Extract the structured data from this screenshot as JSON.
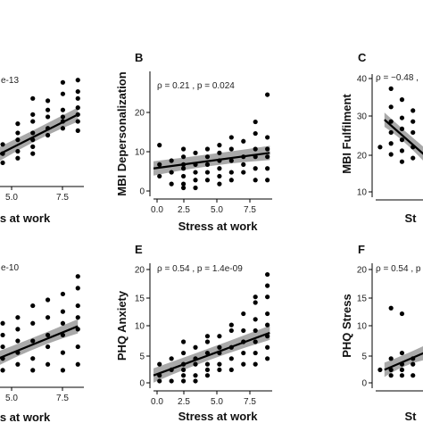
{
  "colors": {
    "point": "#000000",
    "band": "#9a9a9a",
    "line": "#000000",
    "axis": "#000000"
  },
  "chart_data": [
    {
      "id": "A",
      "panel_label": "",
      "type": "scatter",
      "annotation": "e-13",
      "xlabel": "s at work",
      "ylabel": "",
      "xticks": [
        "5.0",
        "7.5"
      ],
      "yticks": [],
      "xlim": [
        3.7,
        9.4
      ],
      "ylim": [
        15,
        62
      ],
      "fit": {
        "x0": 3.7,
        "y0": 26.5,
        "x1": 9,
        "y1": 44
      },
      "points": [
        [
          4,
          23
        ],
        [
          4,
          27
        ],
        [
          4,
          31
        ],
        [
          5,
          25
        ],
        [
          5,
          28
        ],
        [
          5,
          33
        ],
        [
          5,
          36
        ],
        [
          5,
          40
        ],
        [
          6,
          27
        ],
        [
          6,
          30
        ],
        [
          6,
          33
        ],
        [
          6,
          36
        ],
        [
          6,
          41
        ],
        [
          6,
          44
        ],
        [
          6,
          51
        ],
        [
          7,
          35
        ],
        [
          7,
          38
        ],
        [
          7,
          43
        ],
        [
          7,
          46
        ],
        [
          7,
          50
        ],
        [
          8,
          38
        ],
        [
          8,
          41
        ],
        [
          8,
          43
        ],
        [
          8,
          46
        ],
        [
          8,
          53
        ],
        [
          8,
          58
        ],
        [
          9,
          37
        ],
        [
          9,
          41
        ],
        [
          9,
          44
        ],
        [
          9,
          47
        ],
        [
          9,
          51
        ],
        [
          9,
          54
        ],
        [
          9,
          59
        ]
      ]
    },
    {
      "id": "B",
      "panel_label": "B",
      "type": "scatter",
      "annotation": "ρ = 0.21 , p = 0.024",
      "xlabel": "Stress at work",
      "ylabel": "MBI Depersonalization",
      "xticks": [
        "0.0",
        "2.5",
        "5.0",
        "7.5"
      ],
      "yticks": [
        "0",
        "10",
        "20"
      ],
      "xlim": [
        -0.5,
        9.4
      ],
      "ylim": [
        -1.5,
        30
      ],
      "fit": {
        "x0": -0.5,
        "y0": 5,
        "x1": 9.2,
        "y1": 9
      },
      "points": [
        [
          0,
          3
        ],
        [
          0,
          6
        ],
        [
          0,
          11
        ],
        [
          1,
          1
        ],
        [
          1,
          4
        ],
        [
          1,
          7
        ],
        [
          2,
          0
        ],
        [
          2,
          1
        ],
        [
          2,
          3
        ],
        [
          2,
          5
        ],
        [
          2,
          6
        ],
        [
          2,
          8
        ],
        [
          2,
          10
        ],
        [
          3,
          0
        ],
        [
          3,
          2
        ],
        [
          3,
          4
        ],
        [
          3,
          6
        ],
        [
          3,
          9
        ],
        [
          4,
          2
        ],
        [
          4,
          4
        ],
        [
          4,
          6
        ],
        [
          4,
          8
        ],
        [
          4,
          10
        ],
        [
          5,
          1
        ],
        [
          5,
          3
        ],
        [
          5,
          5
        ],
        [
          5,
          7
        ],
        [
          5,
          9
        ],
        [
          5,
          11
        ],
        [
          6,
          2
        ],
        [
          6,
          4
        ],
        [
          6,
          7
        ],
        [
          6,
          10
        ],
        [
          6,
          13
        ],
        [
          7,
          4
        ],
        [
          7,
          6
        ],
        [
          7,
          8
        ],
        [
          7,
          12
        ],
        [
          8,
          2
        ],
        [
          8,
          5
        ],
        [
          8,
          8
        ],
        [
          8,
          10
        ],
        [
          8,
          14
        ],
        [
          8,
          17
        ],
        [
          9,
          2
        ],
        [
          9,
          5
        ],
        [
          9,
          8
        ],
        [
          9,
          10
        ],
        [
          9,
          13
        ],
        [
          9,
          24
        ]
      ]
    },
    {
      "id": "C",
      "panel_label": "C",
      "type": "scatter",
      "annotation": "ρ = −0.48 ,",
      "xlabel": "St",
      "ylabel": "MBI Fulfilment",
      "xticks": [],
      "yticks": [
        "10",
        "20",
        "30",
        "40"
      ],
      "xlim": [
        -0.4,
        4.0
      ],
      "ylim": [
        9,
        42
      ],
      "fit": {
        "x0": 0.4,
        "y0": 29.5,
        "x1": 4,
        "y1": 20
      },
      "points": [
        [
          0,
          22
        ],
        [
          1,
          20
        ],
        [
          1,
          23
        ],
        [
          1,
          26
        ],
        [
          1,
          29
        ],
        [
          1,
          33
        ],
        [
          1,
          38
        ],
        [
          2,
          18
        ],
        [
          2,
          21
        ],
        [
          2,
          24
        ],
        [
          2,
          27
        ],
        [
          2,
          30
        ],
        [
          2,
          35
        ],
        [
          3,
          19
        ],
        [
          3,
          22
        ],
        [
          3,
          26
        ],
        [
          3,
          29
        ],
        [
          3,
          32
        ]
      ]
    },
    {
      "id": "D",
      "panel_label": "",
      "type": "scatter",
      "annotation": "e-10",
      "xlabel": "s at work",
      "ylabel": "",
      "xticks": [
        "5.0",
        "7.5"
      ],
      "yticks": [],
      "xlim": [
        3.7,
        9.4
      ],
      "ylim": [
        -1,
        20
      ],
      "fit": {
        "x0": 3.7,
        "y0": 3,
        "x1": 9,
        "y1": 8.5
      },
      "points": [
        [
          4,
          1
        ],
        [
          4,
          3
        ],
        [
          4,
          5
        ],
        [
          4,
          7
        ],
        [
          4,
          9
        ],
        [
          5,
          2
        ],
        [
          5,
          4
        ],
        [
          5,
          6
        ],
        [
          5,
          8
        ],
        [
          5,
          10
        ],
        [
          6,
          1
        ],
        [
          6,
          3
        ],
        [
          6,
          6
        ],
        [
          6,
          9
        ],
        [
          6,
          12
        ],
        [
          7,
          2
        ],
        [
          7,
          5
        ],
        [
          7,
          7
        ],
        [
          7,
          10
        ],
        [
          7,
          13
        ],
        [
          8,
          1
        ],
        [
          8,
          4
        ],
        [
          8,
          7
        ],
        [
          8,
          9
        ],
        [
          8,
          11
        ],
        [
          8,
          14
        ],
        [
          9,
          2
        ],
        [
          9,
          5
        ],
        [
          9,
          8
        ],
        [
          9,
          10
        ],
        [
          9,
          12
        ],
        [
          9,
          15
        ],
        [
          9,
          17
        ]
      ]
    },
    {
      "id": "E",
      "panel_label": "E",
      "type": "scatter",
      "annotation": "ρ = 0.54 , p = 1.4e-09",
      "xlabel": "Stress at work",
      "ylabel": "PHQ Anxiety",
      "xticks": [
        "0.0",
        "2.5",
        "5.0",
        "7.5"
      ],
      "yticks": [
        "0",
        "5",
        "10",
        "15",
        "20"
      ],
      "xlim": [
        -0.5,
        9.4
      ],
      "ylim": [
        -0.8,
        21
      ],
      "fit": {
        "x0": -0.5,
        "y0": 1,
        "x1": 9.2,
        "y1": 8.6
      },
      "points": [
        [
          0,
          0
        ],
        [
          0,
          1
        ],
        [
          0,
          3
        ],
        [
          1,
          0
        ],
        [
          1,
          2
        ],
        [
          1,
          4
        ],
        [
          2,
          0
        ],
        [
          2,
          1
        ],
        [
          2,
          2
        ],
        [
          2,
          3
        ],
        [
          2,
          5
        ],
        [
          2,
          7
        ],
        [
          3,
          0
        ],
        [
          3,
          1
        ],
        [
          3,
          3
        ],
        [
          3,
          4
        ],
        [
          3,
          6
        ],
        [
          4,
          1
        ],
        [
          4,
          2
        ],
        [
          4,
          3
        ],
        [
          4,
          5
        ],
        [
          4,
          7
        ],
        [
          4,
          8
        ],
        [
          5,
          2
        ],
        [
          5,
          3
        ],
        [
          5,
          5
        ],
        [
          5,
          6
        ],
        [
          5,
          8
        ],
        [
          6,
          2
        ],
        [
          6,
          4
        ],
        [
          6,
          6
        ],
        [
          6,
          9
        ],
        [
          6,
          10
        ],
        [
          7,
          3
        ],
        [
          7,
          5
        ],
        [
          7,
          7
        ],
        [
          7,
          9
        ],
        [
          7,
          12
        ],
        [
          8,
          3
        ],
        [
          8,
          5
        ],
        [
          8,
          7
        ],
        [
          8,
          9
        ],
        [
          8,
          11
        ],
        [
          8,
          14
        ],
        [
          8,
          15
        ],
        [
          9,
          4
        ],
        [
          9,
          6
        ],
        [
          9,
          8
        ],
        [
          9,
          10
        ],
        [
          9,
          12
        ],
        [
          9,
          15
        ],
        [
          9,
          17
        ],
        [
          9,
          19
        ]
      ]
    },
    {
      "id": "F",
      "panel_label": "F",
      "type": "scatter",
      "annotation": "ρ = 0.54 , p",
      "xlabel": "St",
      "ylabel": "PHQ Stress",
      "xticks": [],
      "yticks": [
        "0",
        "5",
        "10",
        "15",
        "20"
      ],
      "xlim": [
        -0.4,
        4.0
      ],
      "ylim": [
        -0.8,
        21
      ],
      "fit": {
        "x0": 0.4,
        "y0": 2,
        "x1": 4,
        "y1": 5
      },
      "points": [
        [
          0,
          2
        ],
        [
          1,
          1
        ],
        [
          1,
          2
        ],
        [
          1,
          4
        ],
        [
          1,
          13
        ],
        [
          2,
          1
        ],
        [
          2,
          2
        ],
        [
          2,
          3
        ],
        [
          2,
          5
        ],
        [
          2,
          12
        ],
        [
          3,
          1
        ],
        [
          3,
          3
        ],
        [
          3,
          4
        ]
      ]
    }
  ]
}
